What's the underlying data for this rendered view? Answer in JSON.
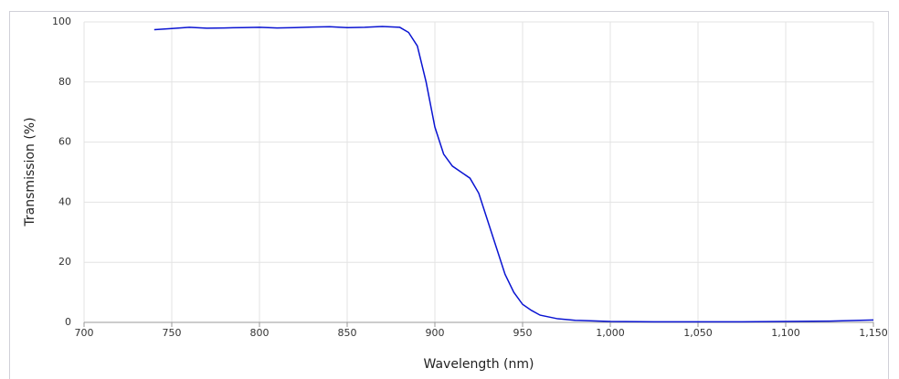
{
  "chart_data": {
    "type": "line",
    "x_label": "Wavelength (nm)",
    "y_label": "Transmission (%)",
    "x": [
      740,
      750,
      760,
      770,
      780,
      790,
      800,
      810,
      820,
      830,
      840,
      850,
      860,
      870,
      880,
      885,
      890,
      895,
      900,
      905,
      910,
      915,
      920,
      925,
      930,
      935,
      940,
      945,
      950,
      955,
      960,
      970,
      980,
      1000,
      1025,
      1050,
      1075,
      1100,
      1125,
      1150
    ],
    "values": [
      97.4,
      97.8,
      98.2,
      97.9,
      98.0,
      98.1,
      98.2,
      98.0,
      98.1,
      98.3,
      98.4,
      98.1,
      98.2,
      98.5,
      98.2,
      96.5,
      92,
      80,
      65,
      56,
      52,
      50,
      48,
      43,
      34,
      25,
      16,
      10,
      6,
      4,
      2.4,
      1.2,
      0.7,
      0.3,
      0.2,
      0.2,
      0.2,
      0.3,
      0.4,
      0.8
    ],
    "color": "#0a14d2",
    "xlim": [
      700,
      1150
    ],
    "xticks": [
      700,
      750,
      800,
      850,
      900,
      950,
      {
        "value": 1000,
        "label": "1,000"
      },
      {
        "value": 1050,
        "label": "1,050"
      },
      {
        "value": 1100,
        "label": "1,100"
      },
      {
        "value": 1150,
        "label": "1,150"
      }
    ],
    "ylim": [
      0,
      100
    ],
    "yticks": [
      0,
      20,
      40,
      60,
      80,
      100
    ],
    "grid": true
  }
}
